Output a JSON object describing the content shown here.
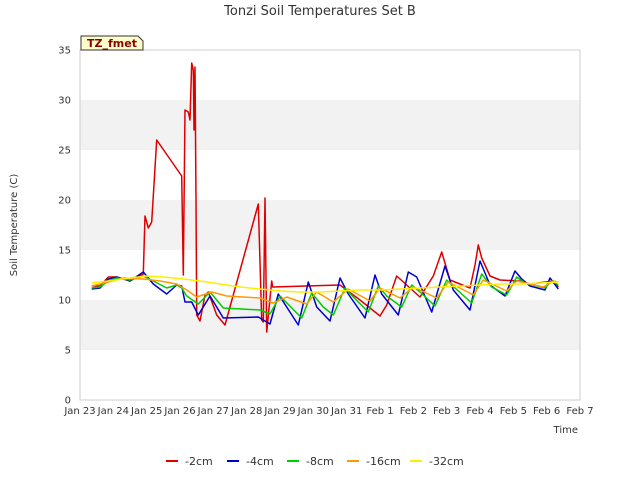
{
  "chart_data": {
    "type": "line",
    "title": "Tonzi Soil Temperatures Set B",
    "xlabel": "Time",
    "ylabel": "Soil Temperature (C)",
    "badge": "TZ_fmet",
    "x_tick_labels": [
      "Jan 23",
      "Jan 24",
      "Jan 25",
      "Jan 26",
      "Jan 27",
      "Jan 28",
      "Jan 29",
      "Jan 30",
      "Jan 31",
      "Feb 1",
      "Feb 2",
      "Feb 3",
      "Feb 4",
      "Feb 5",
      "Feb 6",
      "Feb 7"
    ],
    "xlim": [
      0,
      15
    ],
    "ylim": [
      0,
      35
    ],
    "y_ticks": [
      0,
      5,
      10,
      15,
      20,
      25,
      30,
      35
    ],
    "grid": "horizontal bands",
    "legend_position": "bottom",
    "series": [
      {
        "name": "-2cm",
        "color": "#dd0000",
        "points": [
          [
            0.35,
            11.4
          ],
          [
            0.6,
            11.4
          ],
          [
            0.85,
            12.3
          ],
          [
            1.1,
            12.3
          ],
          [
            1.5,
            11.9
          ],
          [
            1.9,
            12.6
          ],
          [
            1.95,
            18.4
          ],
          [
            2.05,
            17.2
          ],
          [
            2.15,
            17.8
          ],
          [
            2.3,
            26.0
          ],
          [
            3.05,
            22.4
          ],
          [
            3.1,
            12.5
          ],
          [
            3.15,
            29.0
          ],
          [
            3.25,
            28.8
          ],
          [
            3.3,
            28.0
          ],
          [
            3.35,
            33.7
          ],
          [
            3.4,
            33.0
          ],
          [
            3.42,
            27.0
          ],
          [
            3.45,
            33.3
          ],
          [
            3.48,
            20.0
          ],
          [
            3.5,
            8.5
          ],
          [
            3.6,
            7.9
          ],
          [
            3.75,
            10.5
          ],
          [
            3.85,
            10.8
          ],
          [
            4.1,
            8.5
          ],
          [
            4.35,
            7.5
          ],
          [
            5.35,
            19.6
          ],
          [
            5.45,
            8.0
          ],
          [
            5.5,
            7.8
          ],
          [
            5.55,
            20.2
          ],
          [
            5.6,
            6.8
          ],
          [
            5.75,
            11.9
          ],
          [
            5.78,
            11.3
          ],
          [
            7.8,
            11.5
          ],
          [
            8.4,
            10.0
          ],
          [
            9.0,
            8.4
          ],
          [
            9.2,
            9.5
          ],
          [
            9.5,
            12.4
          ],
          [
            10.2,
            10.3
          ],
          [
            10.6,
            12.4
          ],
          [
            10.85,
            14.8
          ],
          [
            11.1,
            12.0
          ],
          [
            11.7,
            11.2
          ],
          [
            11.85,
            13.5
          ],
          [
            11.95,
            15.5
          ],
          [
            12.05,
            14.2
          ],
          [
            12.3,
            12.4
          ],
          [
            12.6,
            12.0
          ],
          [
            13.2,
            11.9
          ],
          [
            13.5,
            11.6
          ],
          [
            14.2,
            11.9
          ],
          [
            14.35,
            11.3
          ]
        ]
      },
      {
        "name": "-4cm",
        "color": "#0000cc",
        "points": [
          [
            0.35,
            11.1
          ],
          [
            0.6,
            11.2
          ],
          [
            0.85,
            12.1
          ],
          [
            1.1,
            12.3
          ],
          [
            1.5,
            11.9
          ],
          [
            1.9,
            12.8
          ],
          [
            2.2,
            11.6
          ],
          [
            2.6,
            10.6
          ],
          [
            2.9,
            11.5
          ],
          [
            3.05,
            11.4
          ],
          [
            3.15,
            9.8
          ],
          [
            3.35,
            9.8
          ],
          [
            3.55,
            8.5
          ],
          [
            3.9,
            10.4
          ],
          [
            4.3,
            8.2
          ],
          [
            5.35,
            8.3
          ],
          [
            5.7,
            7.6
          ],
          [
            5.95,
            10.6
          ],
          [
            6.55,
            7.5
          ],
          [
            6.85,
            11.8
          ],
          [
            7.1,
            9.3
          ],
          [
            7.5,
            7.9
          ],
          [
            7.8,
            12.2
          ],
          [
            8.05,
            10.6
          ],
          [
            8.55,
            8.2
          ],
          [
            8.85,
            12.5
          ],
          [
            9.05,
            10.6
          ],
          [
            9.55,
            8.5
          ],
          [
            9.85,
            12.8
          ],
          [
            10.1,
            12.3
          ],
          [
            10.55,
            8.8
          ],
          [
            10.95,
            13.4
          ],
          [
            11.2,
            11.0
          ],
          [
            11.7,
            9.0
          ],
          [
            12.0,
            13.9
          ],
          [
            12.3,
            11.5
          ],
          [
            12.75,
            10.4
          ],
          [
            13.05,
            12.9
          ],
          [
            13.25,
            12.1
          ],
          [
            13.5,
            11.4
          ],
          [
            13.95,
            11.0
          ],
          [
            14.1,
            12.2
          ],
          [
            14.35,
            11.1
          ]
        ]
      },
      {
        "name": "-8cm",
        "color": "#00cc00",
        "points": [
          [
            0.35,
            11.2
          ],
          [
            0.6,
            11.3
          ],
          [
            0.85,
            11.9
          ],
          [
            1.1,
            12.2
          ],
          [
            1.5,
            12.0
          ],
          [
            1.9,
            12.4
          ],
          [
            2.2,
            11.9
          ],
          [
            2.6,
            11.2
          ],
          [
            2.9,
            11.5
          ],
          [
            3.05,
            11.2
          ],
          [
            3.2,
            10.4
          ],
          [
            3.55,
            9.6
          ],
          [
            3.9,
            10.8
          ],
          [
            4.3,
            9.2
          ],
          [
            5.4,
            9.0
          ],
          [
            5.7,
            8.6
          ],
          [
            6.0,
            10.4
          ],
          [
            6.65,
            8.2
          ],
          [
            6.95,
            10.7
          ],
          [
            7.3,
            9.3
          ],
          [
            7.6,
            8.5
          ],
          [
            7.95,
            11.2
          ],
          [
            8.2,
            10.3
          ],
          [
            8.65,
            8.8
          ],
          [
            8.95,
            11.4
          ],
          [
            9.2,
            10.4
          ],
          [
            9.65,
            9.3
          ],
          [
            9.95,
            11.5
          ],
          [
            10.2,
            10.8
          ],
          [
            10.65,
            9.4
          ],
          [
            11.0,
            12.0
          ],
          [
            11.25,
            11.2
          ],
          [
            11.75,
            9.7
          ],
          [
            12.05,
            12.6
          ],
          [
            12.35,
            11.3
          ],
          [
            12.8,
            10.5
          ],
          [
            13.1,
            12.3
          ],
          [
            13.35,
            11.7
          ],
          [
            13.95,
            11.2
          ],
          [
            14.15,
            11.9
          ],
          [
            14.35,
            11.5
          ]
        ]
      },
      {
        "name": "-16cm",
        "color": "#ff9900",
        "points": [
          [
            0.35,
            11.4
          ],
          [
            0.85,
            11.8
          ],
          [
            1.3,
            12.2
          ],
          [
            1.9,
            12.1
          ],
          [
            2.4,
            11.9
          ],
          [
            2.9,
            11.6
          ],
          [
            3.2,
            11.0
          ],
          [
            3.5,
            10.3
          ],
          [
            3.95,
            10.8
          ],
          [
            4.4,
            10.4
          ],
          [
            5.4,
            10.2
          ],
          [
            5.8,
            9.7
          ],
          [
            6.2,
            10.3
          ],
          [
            6.8,
            9.6
          ],
          [
            7.1,
            10.8
          ],
          [
            7.6,
            9.8
          ],
          [
            8.05,
            11.1
          ],
          [
            8.7,
            9.9
          ],
          [
            9.0,
            11.2
          ],
          [
            9.6,
            10.2
          ],
          [
            10.0,
            11.3
          ],
          [
            10.7,
            10.2
          ],
          [
            11.05,
            11.8
          ],
          [
            11.8,
            10.5
          ],
          [
            12.1,
            12.0
          ],
          [
            12.8,
            10.9
          ],
          [
            13.1,
            11.9
          ],
          [
            13.9,
            11.3
          ],
          [
            14.2,
            11.9
          ],
          [
            14.35,
            11.8
          ]
        ]
      },
      {
        "name": "-32cm",
        "color": "#ffee00",
        "points": [
          [
            0.35,
            11.7
          ],
          [
            0.85,
            11.9
          ],
          [
            1.5,
            12.2
          ],
          [
            2.0,
            12.4
          ],
          [
            2.5,
            12.3
          ],
          [
            3.1,
            12.1
          ],
          [
            3.6,
            11.9
          ],
          [
            4.2,
            11.6
          ],
          [
            4.8,
            11.3
          ],
          [
            5.4,
            11.1
          ],
          [
            6.0,
            10.9
          ],
          [
            6.6,
            10.8
          ],
          [
            7.2,
            10.8
          ],
          [
            7.8,
            10.9
          ],
          [
            8.4,
            11.0
          ],
          [
            9.0,
            11.0
          ],
          [
            9.6,
            11.1
          ],
          [
            10.2,
            11.2
          ],
          [
            10.8,
            11.3
          ],
          [
            11.4,
            11.4
          ],
          [
            12.0,
            11.5
          ],
          [
            12.6,
            11.6
          ],
          [
            13.2,
            11.6
          ],
          [
            13.8,
            11.7
          ],
          [
            14.35,
            11.8
          ]
        ]
      }
    ]
  }
}
